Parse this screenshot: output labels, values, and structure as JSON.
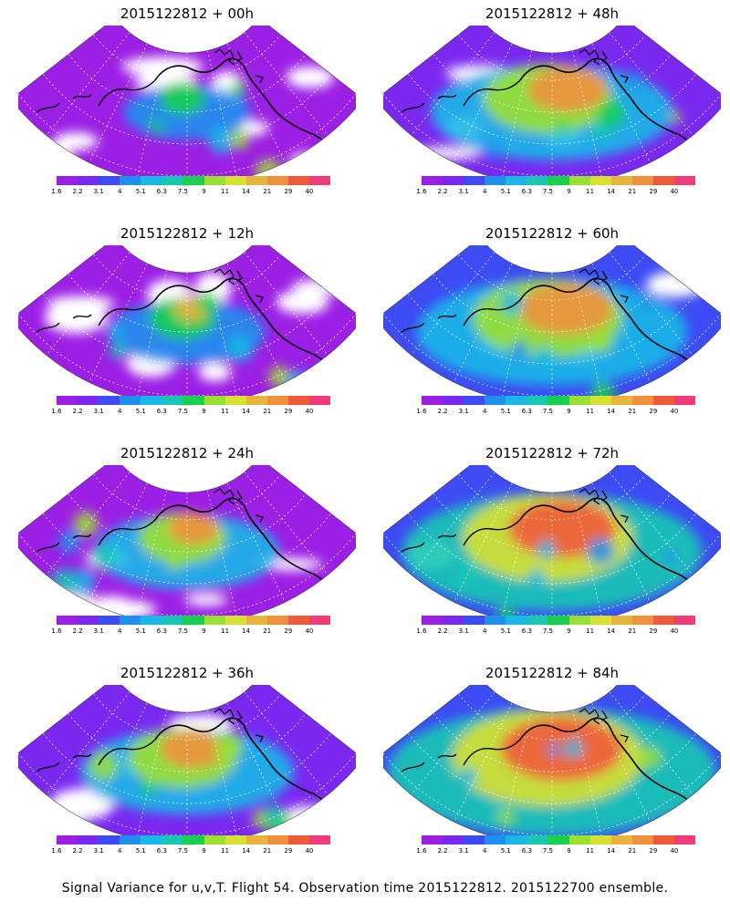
{
  "caption": "Signal Variance for u,v,T. Flight 54. Observation time 2015122812. 2015122700 ensemble.",
  "colorbar": {
    "colors": [
      "#9c1fe6",
      "#7a28f0",
      "#3d4bf5",
      "#1e90f0",
      "#19b8e8",
      "#18c8b4",
      "#18d050",
      "#9be030",
      "#d8e030",
      "#e8b43c",
      "#f0903c",
      "#f05a3c",
      "#f03c78"
    ],
    "labels": [
      "1.6",
      "2.2",
      "3.1",
      "4",
      "5.1",
      "6.3",
      "7.5",
      "9",
      "11",
      "14",
      "21",
      "29",
      "40"
    ]
  },
  "panels": [
    {
      "title": "2015122812 + 00h",
      "lead_hours": 0
    },
    {
      "title": "2015122812 + 48h",
      "lead_hours": 48
    },
    {
      "title": "2015122812 + 12h",
      "lead_hours": 12
    },
    {
      "title": "2015122812 + 60h",
      "lead_hours": 60
    },
    {
      "title": "2015122812 + 24h",
      "lead_hours": 24
    },
    {
      "title": "2015122812 + 72h",
      "lead_hours": 72
    },
    {
      "title": "2015122812 + 36h",
      "lead_hours": 36
    },
    {
      "title": "2015122812 + 84h",
      "lead_hours": 84
    }
  ]
}
